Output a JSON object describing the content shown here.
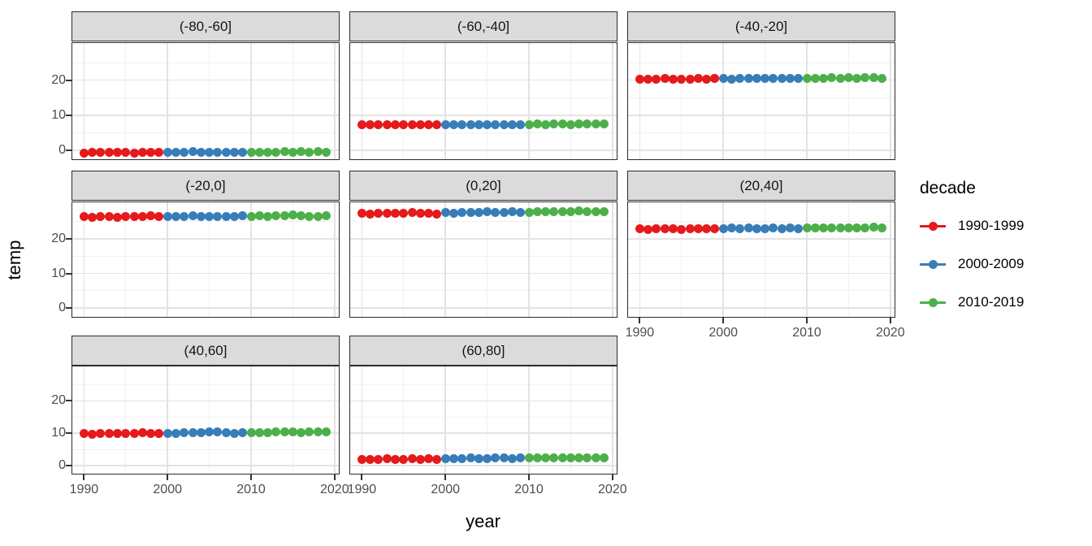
{
  "figure": {
    "xlabel": "year",
    "ylabel": "temp",
    "background": "#FFFFFF"
  },
  "legend": {
    "title": "decade",
    "entries": [
      {
        "label": "1990-1999",
        "color": "#E41A1C"
      },
      {
        "label": "2000-2009",
        "color": "#377EB8"
      },
      {
        "label": "2010-2019",
        "color": "#4DAF4A"
      }
    ]
  },
  "style": {
    "strip_bg": "#DBDBDB",
    "strip_border": "#2B2B2B",
    "panel_border": "#2B2B2B",
    "grid_major": "#E3E3E3",
    "grid_minor": "#F1F1F1",
    "tick_mark": "#333333",
    "tick_text": "#4D4D4D",
    "axis_text": "#000000"
  },
  "chart_data": {
    "type": "scatter",
    "title": "",
    "xlabel": "year",
    "ylabel": "temp",
    "legend_title": "decade",
    "legend_position": "right",
    "grid": true,
    "x_ticks": [
      1990,
      2000,
      2010,
      2020
    ],
    "y_ticks": [
      0,
      10,
      20
    ],
    "x_minor": [
      1995,
      2005,
      2015
    ],
    "y_minor": [
      5,
      15,
      25
    ],
    "x_domain": [
      1988.6,
      2020.7
    ],
    "y_domain": [
      -3.0,
      30.6
    ],
    "decade_series": [
      {
        "name": "1990-1999",
        "years": [
          1990,
          1999
        ],
        "color": "#E41A1C"
      },
      {
        "name": "2000-2009",
        "years": [
          2000,
          2009
        ],
        "color": "#377EB8"
      },
      {
        "name": "2010-2019",
        "years": [
          2010,
          2019
        ],
        "color": "#4DAF4A"
      }
    ],
    "facets": [
      {
        "label": "(-80,-60]",
        "start_year": 1990,
        "temps": [
          -0.7,
          -0.6,
          -0.5,
          -0.6,
          -0.5,
          -0.6,
          -0.7,
          -0.6,
          -0.5,
          -0.6,
          -0.5,
          -0.6,
          -0.5,
          -0.4,
          -0.5,
          -0.6,
          -0.5,
          -0.6,
          -0.5,
          -0.6,
          -0.6,
          -0.5,
          -0.6,
          -0.5,
          -0.4,
          -0.5,
          -0.4,
          -0.5,
          -0.4,
          -0.5
        ]
      },
      {
        "label": "(-60,-40]",
        "start_year": 1990,
        "temps": [
          7.2,
          7.3,
          7.2,
          7.3,
          7.2,
          7.3,
          7.2,
          7.3,
          7.3,
          7.2,
          7.3,
          7.3,
          7.4,
          7.3,
          7.4,
          7.3,
          7.4,
          7.4,
          7.3,
          7.4,
          7.4,
          7.5,
          7.4,
          7.5,
          7.5,
          7.4,
          7.5,
          7.5,
          7.6,
          7.5
        ]
      },
      {
        "label": "(-40,-20]",
        "start_year": 1990,
        "temps": [
          20.4,
          20.3,
          20.4,
          20.5,
          20.4,
          20.3,
          20.4,
          20.5,
          20.4,
          20.5,
          20.5,
          20.4,
          20.5,
          20.6,
          20.5,
          20.6,
          20.5,
          20.6,
          20.5,
          20.6,
          20.6,
          20.5,
          20.6,
          20.7,
          20.6,
          20.7,
          20.6,
          20.7,
          20.7,
          20.6
        ]
      },
      {
        "label": "(-20,0]",
        "start_year": 1990,
        "temps": [
          26.4,
          26.3,
          26.5,
          26.4,
          26.3,
          26.5,
          26.4,
          26.6,
          26.7,
          26.4,
          26.5,
          26.6,
          26.5,
          26.7,
          26.5,
          26.6,
          26.4,
          26.6,
          26.5,
          26.7,
          26.5,
          26.7,
          26.6,
          26.8,
          26.7,
          26.9,
          26.8,
          26.6,
          26.5,
          26.7
        ]
      },
      {
        "label": "(0,20]",
        "start_year": 1990,
        "temps": [
          27.4,
          27.3,
          27.5,
          27.4,
          27.5,
          27.4,
          27.6,
          27.5,
          27.4,
          27.3,
          27.6,
          27.5,
          27.7,
          27.6,
          27.7,
          27.8,
          27.6,
          27.7,
          27.8,
          27.7,
          27.7,
          27.8,
          27.9,
          27.8,
          28.0,
          27.9,
          28.1,
          28.0,
          27.9,
          28.0
        ]
      },
      {
        "label": "(20,40]",
        "start_year": 1990,
        "temps": [
          22.9,
          22.8,
          22.9,
          23.0,
          22.9,
          22.8,
          23.0,
          22.9,
          23.0,
          22.9,
          23.0,
          23.1,
          23.0,
          23.1,
          23.0,
          22.9,
          23.1,
          23.0,
          23.1,
          23.0,
          23.1,
          23.2,
          23.1,
          23.2,
          23.3,
          23.2,
          23.3,
          23.2,
          23.4,
          23.3
        ]
      },
      {
        "label": "(40,60]",
        "start_year": 1990,
        "temps": [
          9.8,
          9.7,
          9.8,
          9.9,
          9.8,
          9.9,
          10.0,
          10.1,
          10.0,
          9.8,
          9.9,
          10.0,
          10.1,
          10.1,
          10.2,
          10.4,
          10.3,
          10.1,
          10.0,
          10.1,
          10.1,
          10.2,
          10.2,
          10.3,
          10.4,
          10.3,
          10.2,
          10.3,
          10.3,
          10.4
        ]
      },
      {
        "label": "(60,80]",
        "start_year": 1990,
        "temps": [
          2.0,
          1.9,
          2.0,
          2.1,
          2.0,
          1.9,
          2.1,
          2.0,
          2.1,
          2.0,
          2.1,
          2.2,
          2.1,
          2.3,
          2.2,
          2.1,
          2.4,
          2.3,
          2.2,
          2.3,
          2.3,
          2.4,
          2.3,
          2.4,
          2.5,
          2.4,
          2.3,
          2.4,
          2.5,
          2.4
        ]
      }
    ]
  }
}
